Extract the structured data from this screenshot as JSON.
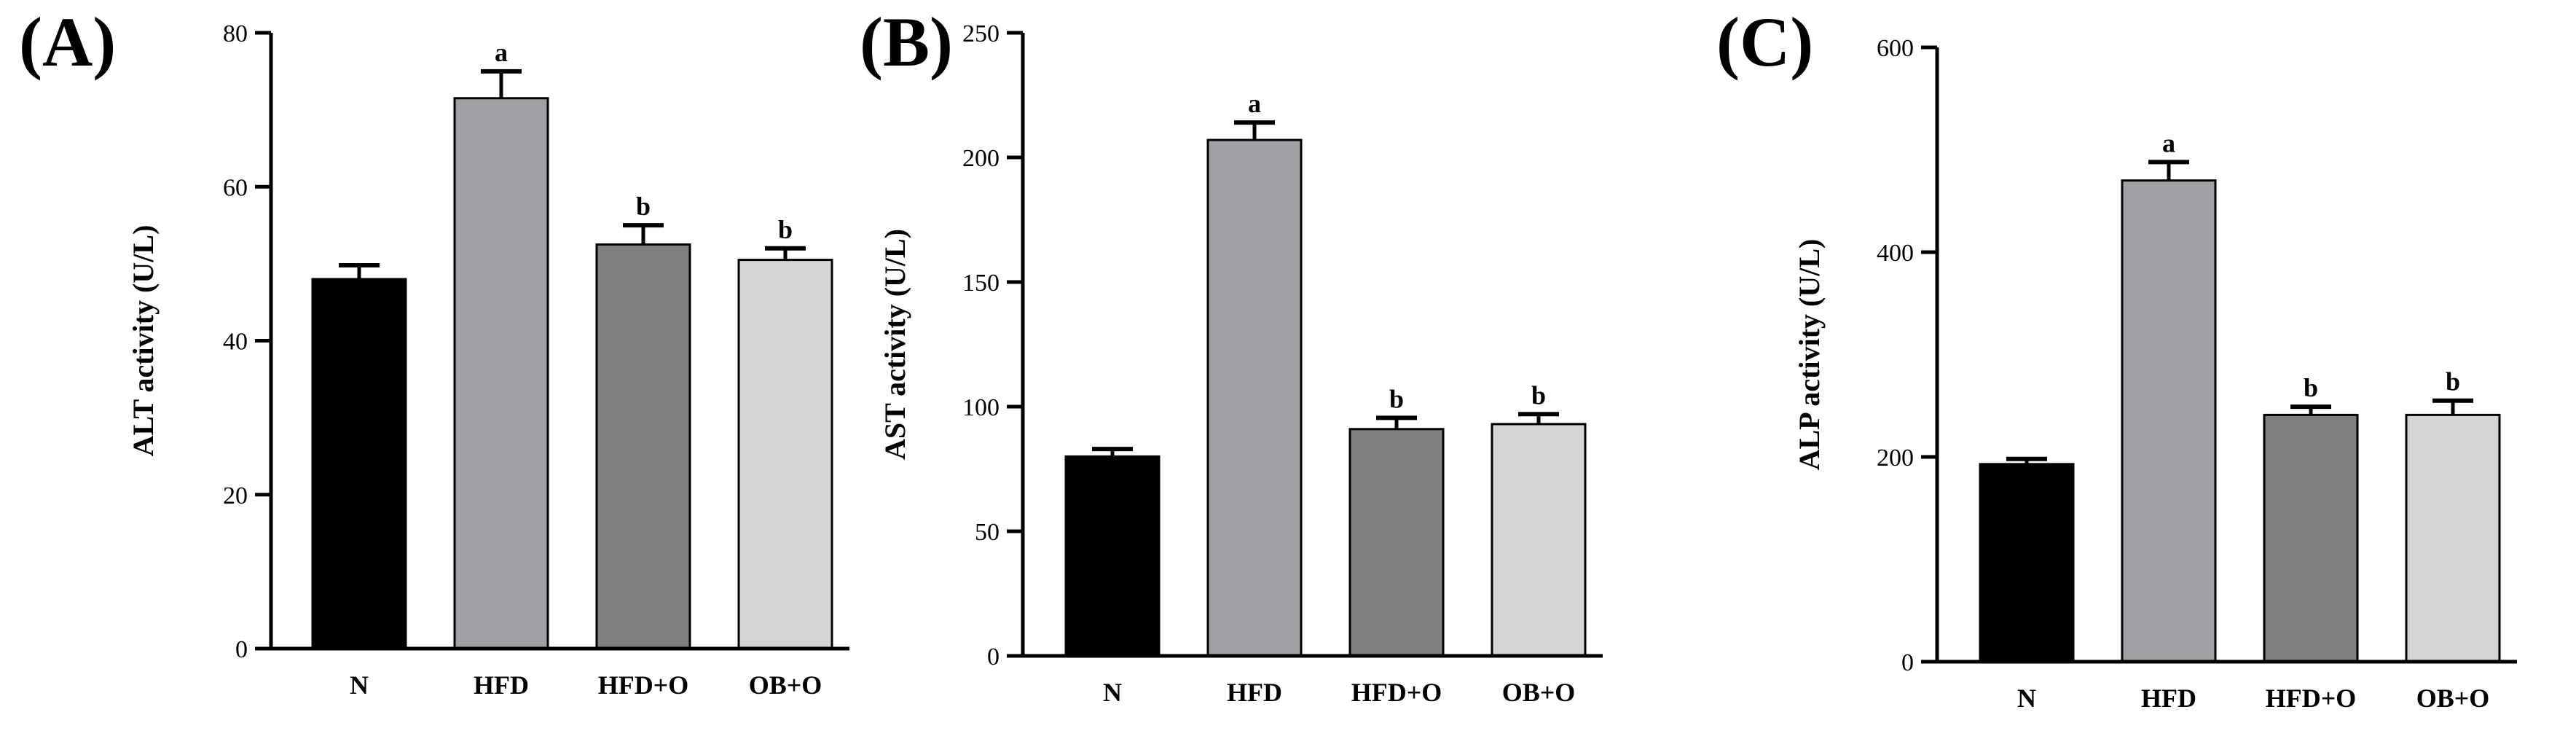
{
  "chart_data": [
    {
      "panel": "(A)",
      "type": "bar",
      "ylabel": "ALT activity (U/L)",
      "ylim": [
        0,
        80
      ],
      "yticks": [
        0,
        20,
        40,
        60,
        80
      ],
      "categories": [
        "N",
        "HFD",
        "HFD+O",
        "OB+O"
      ],
      "values": [
        48,
        71.5,
        52.5,
        50.5
      ],
      "errors": [
        1.8,
        3.5,
        2.5,
        1.5
      ],
      "significance": [
        "",
        "a",
        "b",
        "b"
      ],
      "bar_colors": [
        "#000000",
        "#a1a0a5",
        "#7f7f7f",
        "#d4d4d4"
      ]
    },
    {
      "panel": "(B)",
      "type": "bar",
      "ylabel": "AST activity (U/L)",
      "ylim": [
        0,
        250
      ],
      "yticks": [
        0,
        50,
        100,
        150,
        200,
        250
      ],
      "categories": [
        "N",
        "HFD",
        "HFD+O",
        "OB+O"
      ],
      "values": [
        80,
        207,
        91,
        93
      ],
      "errors": [
        3,
        7,
        4.5,
        4
      ],
      "significance": [
        "",
        "a",
        "b",
        "b"
      ],
      "bar_colors": [
        "#000000",
        "#a1a0a5",
        "#7f7f7f",
        "#d4d4d4"
      ]
    },
    {
      "panel": "(C)",
      "type": "bar",
      "ylabel": "ALP activity (U/L)",
      "ylim": [
        0,
        600
      ],
      "yticks": [
        0,
        200,
        400,
        600
      ],
      "categories": [
        "N",
        "HFD",
        "HFD+O",
        "OB+O"
      ],
      "values": [
        193,
        470,
        241,
        241
      ],
      "errors": [
        5,
        18,
        8,
        14
      ],
      "significance": [
        "",
        "a",
        "b",
        "b"
      ],
      "bar_colors": [
        "#000000",
        "#a1a0a5",
        "#7f7f7f",
        "#d4d4d4"
      ]
    }
  ]
}
